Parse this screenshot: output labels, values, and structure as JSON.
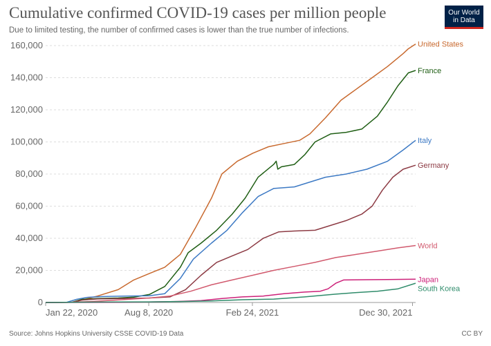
{
  "header": {
    "title": "Cumulative confirmed COVID-19 cases per million people",
    "subtitle": "Due to limited testing, the number of confirmed cases is lower than the true number of infections.",
    "logo_line1": "Our World",
    "logo_line2": "in Data"
  },
  "footer": {
    "source": "Source: Johns Hopkins University CSSE COVID-19 Data",
    "license": "CC BY"
  },
  "colors": {
    "United States": "#c8692e",
    "France": "#1f5e14",
    "Italy": "#3c79c4",
    "Germany": "#8c3a43",
    "World": "#d1596d",
    "Japan": "#cc1f78",
    "South Korea": "#2e8b6a",
    "grid": "#dddddd",
    "axis": "#999999"
  },
  "chart_data": {
    "type": "line",
    "title": "Cumulative confirmed COVID-19 cases per million people",
    "xlabel": "",
    "ylabel": "",
    "x_unit": "days since Jan 22, 2020",
    "xlim": [
      0,
      714
    ],
    "ylim": [
      0,
      160000
    ],
    "y_ticks": [
      0,
      20000,
      40000,
      60000,
      80000,
      100000,
      120000,
      140000,
      160000
    ],
    "y_tick_labels": [
      "0",
      "20,000",
      "40,000",
      "60,000",
      "80,000",
      "100,000",
      "120,000",
      "140,000",
      "160,000"
    ],
    "x_ticks": [
      0,
      199,
      399,
      708
    ],
    "x_tick_labels": [
      "Jan 22, 2020",
      "Aug 8, 2020",
      "Feb 24, 2021",
      "Dec 30, 2021"
    ],
    "grid": true,
    "series": [
      {
        "name": "United States",
        "points": [
          [
            0,
            0
          ],
          [
            50,
            100
          ],
          [
            70,
            1500
          ],
          [
            100,
            4000
          ],
          [
            140,
            8000
          ],
          [
            170,
            14000
          ],
          [
            200,
            18000
          ],
          [
            230,
            22000
          ],
          [
            260,
            30000
          ],
          [
            290,
            47000
          ],
          [
            320,
            65000
          ],
          [
            340,
            80000
          ],
          [
            370,
            88000
          ],
          [
            400,
            93000
          ],
          [
            430,
            97000
          ],
          [
            460,
            99000
          ],
          [
            490,
            101000
          ],
          [
            510,
            105000
          ],
          [
            540,
            115000
          ],
          [
            570,
            126000
          ],
          [
            600,
            133000
          ],
          [
            630,
            140000
          ],
          [
            660,
            147000
          ],
          [
            690,
            155000
          ],
          [
            700,
            158000
          ],
          [
            714,
            161000
          ]
        ]
      },
      {
        "name": "France",
        "points": [
          [
            0,
            0
          ],
          [
            50,
            100
          ],
          [
            70,
            2000
          ],
          [
            100,
            2500
          ],
          [
            140,
            2800
          ],
          [
            170,
            3300
          ],
          [
            200,
            5000
          ],
          [
            230,
            10000
          ],
          [
            260,
            22000
          ],
          [
            275,
            31000
          ],
          [
            300,
            37000
          ],
          [
            330,
            45000
          ],
          [
            360,
            55000
          ],
          [
            385,
            65000
          ],
          [
            410,
            78000
          ],
          [
            440,
            86000
          ],
          [
            445,
            88000
          ],
          [
            448,
            83000
          ],
          [
            455,
            84500
          ],
          [
            480,
            86000
          ],
          [
            500,
            92000
          ],
          [
            520,
            100000
          ],
          [
            550,
            105000
          ],
          [
            580,
            106000
          ],
          [
            610,
            108000
          ],
          [
            640,
            116000
          ],
          [
            660,
            125000
          ],
          [
            680,
            135000
          ],
          [
            700,
            143000
          ],
          [
            714,
            144500
          ]
        ]
      },
      {
        "name": "Italy",
        "points": [
          [
            0,
            0
          ],
          [
            40,
            100
          ],
          [
            60,
            2000
          ],
          [
            80,
            3200
          ],
          [
            110,
            3700
          ],
          [
            150,
            4000
          ],
          [
            200,
            4200
          ],
          [
            230,
            5500
          ],
          [
            260,
            15000
          ],
          [
            285,
            27000
          ],
          [
            320,
            37000
          ],
          [
            350,
            45000
          ],
          [
            380,
            56000
          ],
          [
            410,
            66000
          ],
          [
            440,
            71000
          ],
          [
            480,
            72000
          ],
          [
            510,
            75000
          ],
          [
            540,
            78000
          ],
          [
            580,
            80000
          ],
          [
            620,
            83000
          ],
          [
            660,
            88000
          ],
          [
            690,
            95000
          ],
          [
            714,
            101000
          ]
        ]
      },
      {
        "name": "Germany",
        "points": [
          [
            0,
            0
          ],
          [
            50,
            100
          ],
          [
            70,
            1500
          ],
          [
            100,
            2200
          ],
          [
            150,
            2500
          ],
          [
            200,
            2800
          ],
          [
            240,
            3500
          ],
          [
            270,
            8000
          ],
          [
            300,
            17000
          ],
          [
            330,
            25000
          ],
          [
            360,
            29000
          ],
          [
            390,
            33000
          ],
          [
            420,
            40000
          ],
          [
            450,
            44000
          ],
          [
            480,
            44500
          ],
          [
            520,
            45000
          ],
          [
            550,
            48000
          ],
          [
            580,
            51000
          ],
          [
            610,
            55000
          ],
          [
            630,
            60000
          ],
          [
            650,
            70000
          ],
          [
            670,
            78000
          ],
          [
            690,
            83000
          ],
          [
            714,
            85500
          ]
        ]
      },
      {
        "name": "World",
        "points": [
          [
            0,
            0
          ],
          [
            40,
            50
          ],
          [
            80,
            500
          ],
          [
            120,
            1200
          ],
          [
            160,
            2000
          ],
          [
            200,
            2800
          ],
          [
            240,
            4000
          ],
          [
            280,
            7000
          ],
          [
            320,
            11000
          ],
          [
            360,
            14000
          ],
          [
            400,
            17000
          ],
          [
            440,
            20000
          ],
          [
            480,
            22500
          ],
          [
            520,
            25000
          ],
          [
            560,
            28000
          ],
          [
            600,
            30000
          ],
          [
            640,
            32000
          ],
          [
            680,
            34000
          ],
          [
            714,
            35500
          ]
        ]
      },
      {
        "name": "Japan",
        "points": [
          [
            0,
            0
          ],
          [
            80,
            50
          ],
          [
            140,
            150
          ],
          [
            200,
            300
          ],
          [
            250,
            600
          ],
          [
            300,
            1200
          ],
          [
            340,
            2500
          ],
          [
            380,
            3500
          ],
          [
            420,
            4000
          ],
          [
            460,
            5500
          ],
          [
            500,
            6500
          ],
          [
            530,
            7000
          ],
          [
            545,
            8500
          ],
          [
            560,
            12000
          ],
          [
            575,
            14000
          ],
          [
            620,
            14200
          ],
          [
            660,
            14300
          ],
          [
            714,
            14500
          ]
        ]
      },
      {
        "name": "South Korea",
        "points": [
          [
            0,
            0
          ],
          [
            40,
            100
          ],
          [
            80,
            200
          ],
          [
            140,
            300
          ],
          [
            200,
            400
          ],
          [
            260,
            600
          ],
          [
            320,
            1000
          ],
          [
            380,
            1700
          ],
          [
            440,
            2100
          ],
          [
            500,
            3500
          ],
          [
            560,
            5200
          ],
          [
            600,
            6200
          ],
          [
            640,
            7000
          ],
          [
            680,
            8500
          ],
          [
            714,
            12000
          ]
        ]
      }
    ],
    "end_labels": [
      "United States",
      "France",
      "Italy",
      "Germany",
      "World",
      "Japan",
      "South Korea"
    ]
  }
}
